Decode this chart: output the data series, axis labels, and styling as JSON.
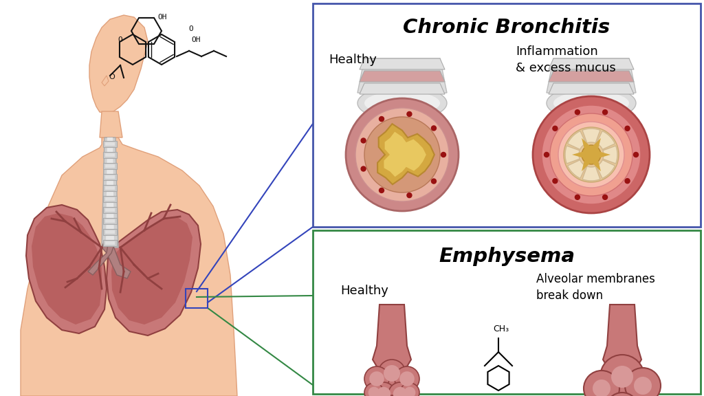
{
  "title": "Chronic Bronchitis",
  "background_color": "#ffffff",
  "cb_box_color": "#4455aa",
  "em_box_color": "#338844",
  "cb_title": "Chronic Bronchitis",
  "em_title": "Emphysema",
  "cb_label1": "Healthy",
  "cb_label2": "Inflammation\n& excess mucus",
  "em_label1": "Healthy",
  "em_label2": "Alveolar membranes\nbreak down",
  "body_skin_color": "#f5c5a3",
  "body_skin_dark": "#e0a07a",
  "lung_color_outer": "#c97878",
  "lung_color_inner": "#b05555",
  "lung_dark": "#8a3535",
  "trachea_light": "#c8c8c8",
  "trachea_band": "#b0b0b0",
  "line_color_blue": "#3344bb",
  "line_color_green": "#338844",
  "chemical_color": "#111111",
  "cb_healthy_outer": "#cc8888",
  "cb_healthy_mid": "#e8b0a0",
  "cb_healthy_lumen": "#d4a840",
  "cb_healthy_center": "#e8c870",
  "cb_inflamed_outer": "#cc7070",
  "cb_inflamed_thick": "#e09090",
  "cb_inflamed_inner": "#f0b0a0",
  "cb_mucus": "#e8d8b8",
  "cb_dot_color": "#991111",
  "cartilage_white": "#e8e8e8",
  "cartilage_pink": "#ddbbbb",
  "alv_color": "#c07878",
  "alv_dark": "#984040"
}
